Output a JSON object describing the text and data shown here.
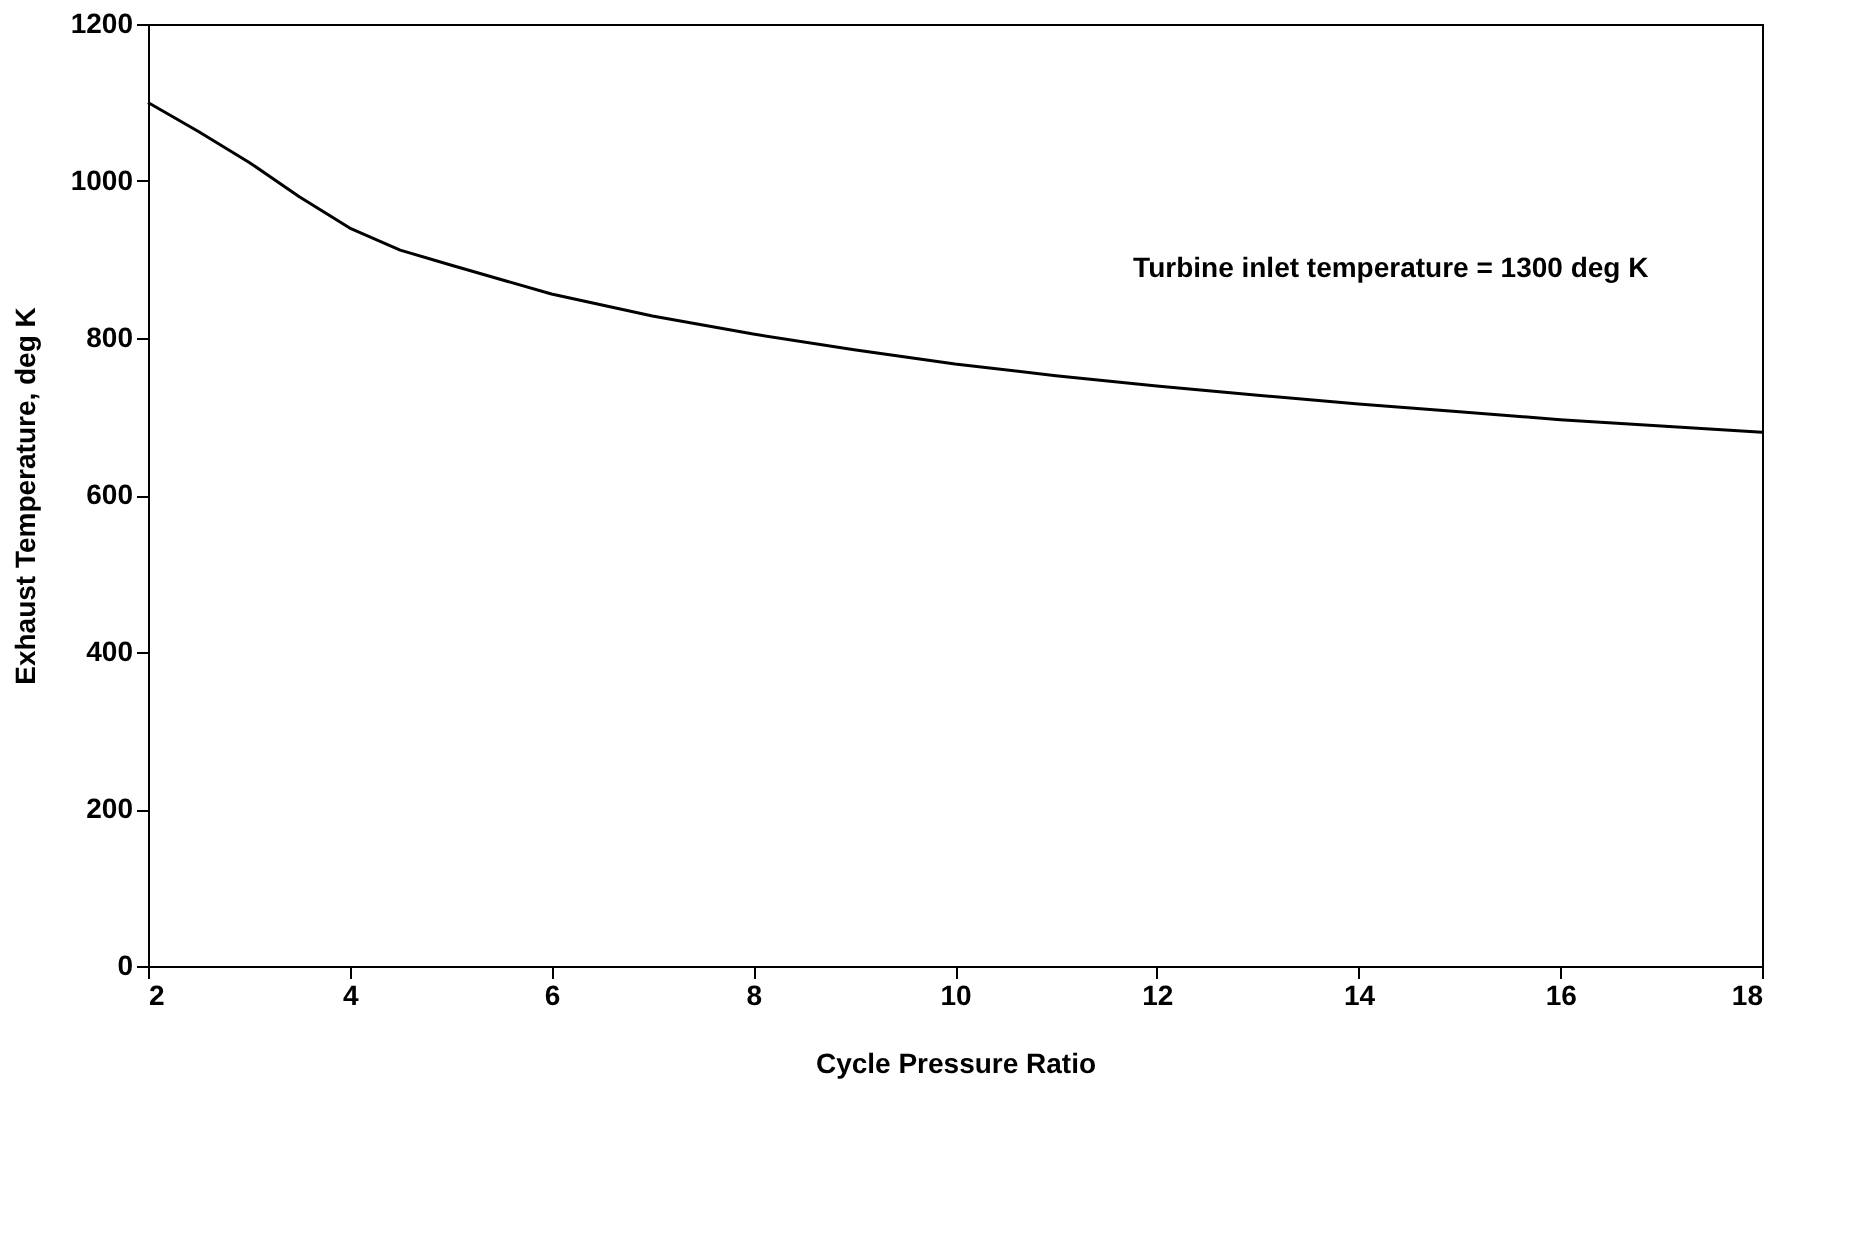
{
  "chart_data": {
    "type": "line",
    "xlabel": "Cycle Pressure Ratio",
    "ylabel": "Exhaust Temperature, deg K",
    "annotations": [
      "Turbine inlet temperature = 1300 deg K"
    ],
    "x": [
      2,
      2.5,
      3,
      3.5,
      4,
      4.5,
      5,
      6,
      7,
      8,
      9,
      10,
      11,
      12,
      13,
      14,
      15,
      16,
      17,
      18
    ],
    "series": [
      {
        "color": "#000000",
        "values": [
          1100,
          1063,
          1024,
          980,
          940,
          912,
          893,
          856,
          828,
          805,
          785,
          767,
          752,
          739,
          727,
          716,
          706,
          696,
          688,
          680
        ]
      }
    ],
    "xlim": [
      2,
      18
    ],
    "xticks": [
      2,
      4,
      6,
      8,
      10,
      12,
      14,
      16,
      18
    ],
    "ylim": [
      0,
      1200
    ],
    "yticks": [
      0,
      200,
      400,
      600,
      800,
      1000,
      1200
    ],
    "grid": false,
    "marker": "none",
    "line_style": "solid"
  }
}
